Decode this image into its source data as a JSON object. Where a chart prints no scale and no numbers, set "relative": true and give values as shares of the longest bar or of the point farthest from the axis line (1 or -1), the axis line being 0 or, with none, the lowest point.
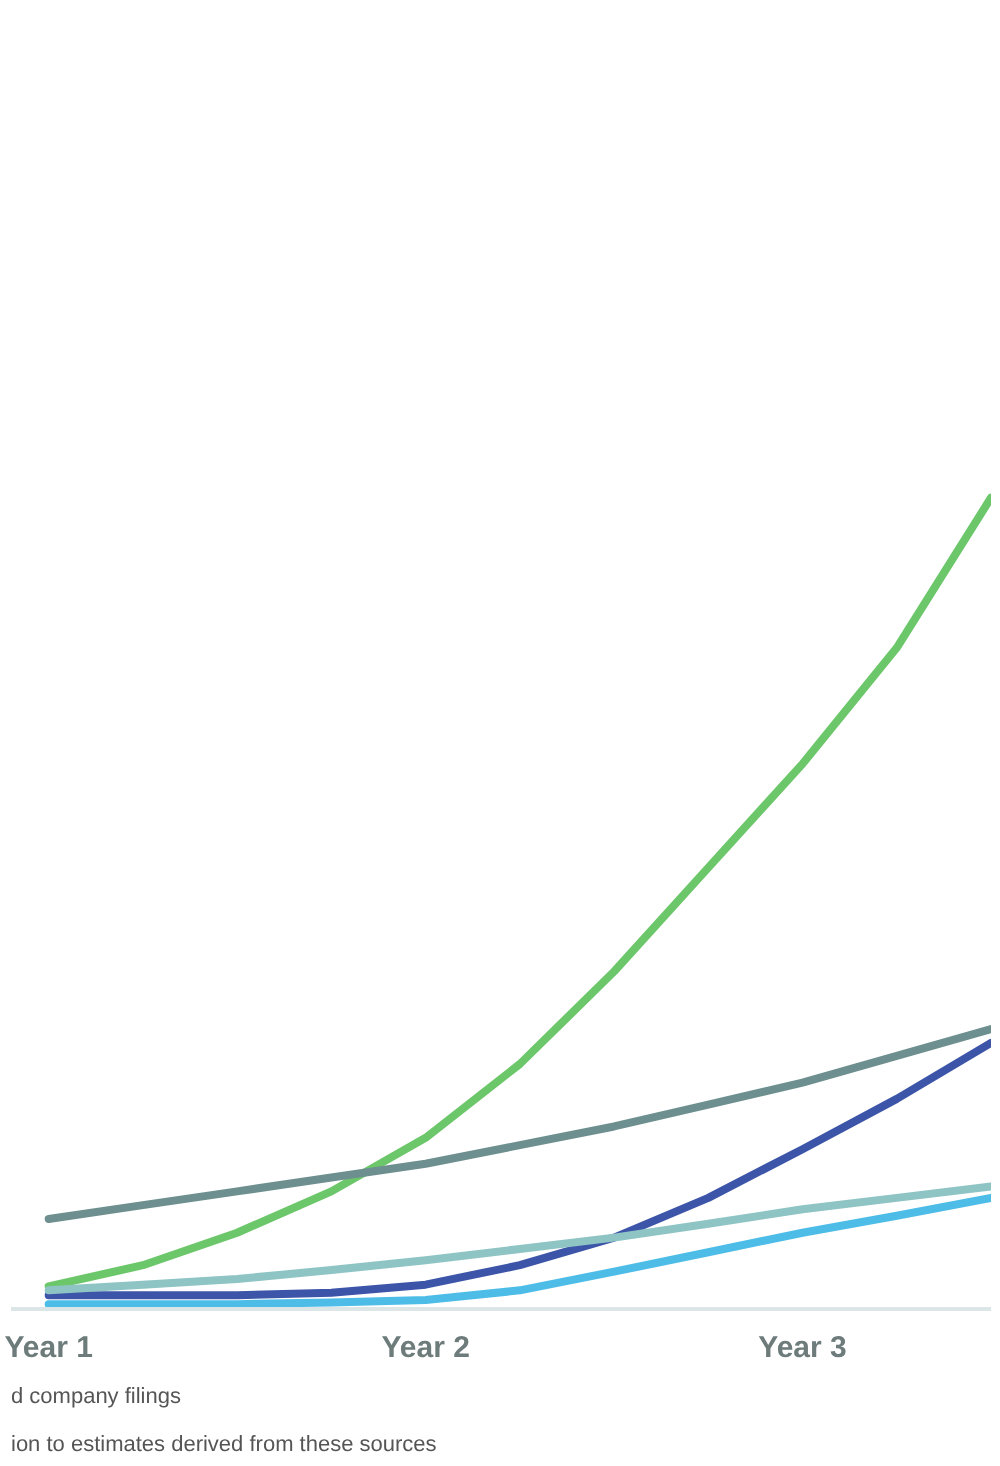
{
  "chart_data": {
    "type": "line",
    "relative": true,
    "categories": [
      "Year 1",
      null,
      null,
      null,
      "Year 2",
      null,
      null,
      null,
      "Year 3",
      null,
      null
    ],
    "series": [
      {
        "color": "#6cc76a",
        "values": [
          0.028,
          0.054,
          0.094,
          0.145,
          0.211,
          0.302,
          0.416,
          0.544,
          0.672,
          0.815,
          1.0
        ]
      },
      {
        "color": "#6e8f8f",
        "values": [
          0.111,
          0.128,
          0.145,
          0.162,
          0.179,
          0.202,
          0.225,
          0.252,
          0.279,
          0.312,
          0.345
        ]
      },
      {
        "color": "#3d55a8",
        "values": [
          0.017,
          0.017,
          0.017,
          0.02,
          0.03,
          0.054,
          0.088,
          0.137,
          0.197,
          0.259,
          0.328
        ]
      },
      {
        "color": "#8fc4c4",
        "values": [
          0.023,
          0.03,
          0.037,
          0.048,
          0.06,
          0.074,
          0.088,
          0.105,
          0.123,
          0.137,
          0.151
        ]
      },
      {
        "color": "#4dbde8",
        "values": [
          0.006,
          0.006,
          0.006,
          0.008,
          0.011,
          0.023,
          0.046,
          0.07,
          0.094,
          0.115,
          0.137
        ]
      }
    ],
    "annotations": [
      "d company filings",
      "ion to estimates derived from these sources"
    ]
  }
}
